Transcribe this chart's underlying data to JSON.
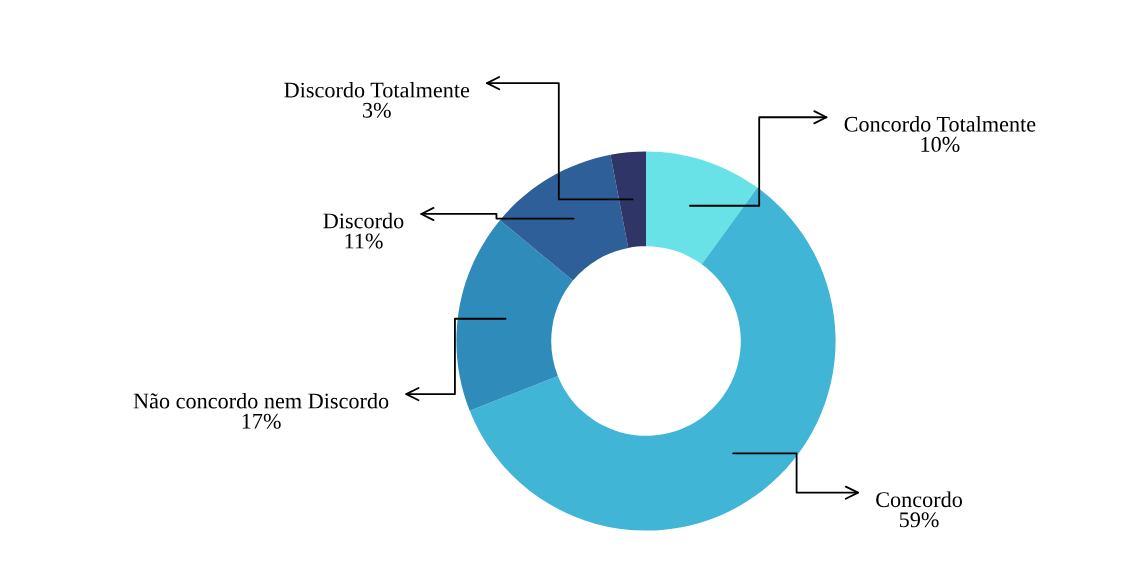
{
  "chart_data": {
    "type": "donut",
    "categories": [
      "Concordo Totalmente",
      "Concordo",
      "Não concordo nem Discordo",
      "Discordo",
      "Discordo Totalmente"
    ],
    "values": [
      10,
      59,
      17,
      11,
      3
    ],
    "colors": [
      "#68e2e6",
      "#41b5d5",
      "#2e8bba",
      "#2e5f98",
      "#2f3566"
    ],
    "value_labels": [
      "10%",
      "59%",
      "17%",
      "11%",
      "3%"
    ],
    "legend": false
  }
}
